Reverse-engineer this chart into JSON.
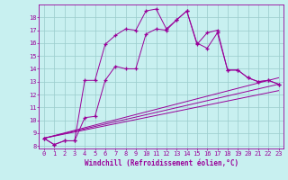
{
  "xlabel": "Windchill (Refroidissement éolien,°C)",
  "bg_color": "#c8f0f0",
  "line_color": "#990099",
  "grid_color": "#99cccc",
  "xlim": [
    -0.5,
    23.5
  ],
  "ylim": [
    7.8,
    19.0
  ],
  "xticks": [
    0,
    1,
    2,
    3,
    4,
    5,
    6,
    7,
    8,
    9,
    10,
    11,
    12,
    13,
    14,
    15,
    16,
    17,
    18,
    19,
    20,
    21,
    22,
    23
  ],
  "yticks": [
    8,
    9,
    10,
    11,
    12,
    13,
    14,
    15,
    16,
    17,
    18
  ],
  "line1_x": [
    0,
    1,
    2,
    3,
    4,
    5,
    6,
    7,
    8,
    9,
    10,
    11,
    12,
    13,
    14,
    15,
    16,
    17,
    18,
    19,
    20,
    21,
    22,
    23
  ],
  "line1_y": [
    8.6,
    8.1,
    8.4,
    8.4,
    13.1,
    13.1,
    15.9,
    16.6,
    17.1,
    17.0,
    18.5,
    18.65,
    17.1,
    17.8,
    18.5,
    15.9,
    16.8,
    17.0,
    13.9,
    13.9,
    13.3,
    13.0,
    13.1,
    12.8
  ],
  "line2_x": [
    0,
    1,
    2,
    3,
    4,
    5,
    6,
    7,
    8,
    9,
    10,
    11,
    12,
    13,
    14,
    15,
    16,
    17,
    18,
    19,
    20,
    21,
    22,
    23
  ],
  "line2_y": [
    8.6,
    8.1,
    8.4,
    8.4,
    10.2,
    10.3,
    13.1,
    14.2,
    14.0,
    14.0,
    16.7,
    17.1,
    17.0,
    17.8,
    18.5,
    16.0,
    15.6,
    16.8,
    13.9,
    13.9,
    13.3,
    13.0,
    13.1,
    12.8
  ],
  "line3_x": [
    0,
    23
  ],
  "line3_y": [
    8.6,
    13.3
  ],
  "line4_x": [
    0,
    23
  ],
  "line4_y": [
    8.6,
    12.8
  ],
  "line5_x": [
    0,
    23
  ],
  "line5_y": [
    8.6,
    12.3
  ]
}
